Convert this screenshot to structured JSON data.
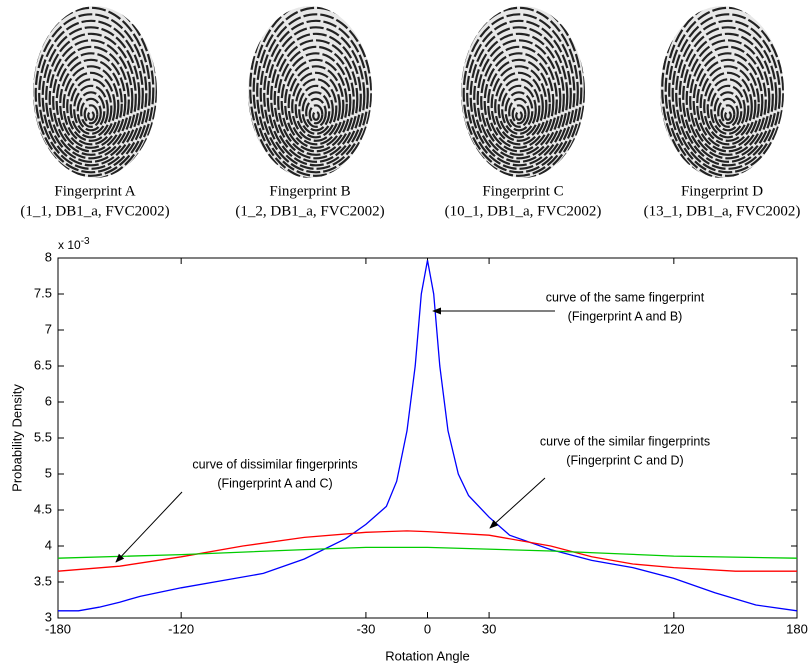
{
  "fingerprints": [
    {
      "label": "Fingerprint A",
      "source": "(1_1, DB1_a, FVC2002)"
    },
    {
      "label": "Fingerprint B",
      "source": "(1_2, DB1_a, FVC2002)"
    },
    {
      "label": "Fingerprint C",
      "source": "(10_1, DB1_a, FVC2002)"
    },
    {
      "label": "Fingerprint D",
      "source": "(13_1, DB1_a, FVC2002)"
    }
  ],
  "chart_data": {
    "type": "line",
    "x_label": "Rotation Angle",
    "y_label": "Probability Density",
    "y_multiplier": {
      "base": "x 10",
      "exponent": "-3"
    },
    "xlim": [
      -180,
      180
    ],
    "xticks": [
      -180,
      -120,
      -30,
      0,
      30,
      120,
      180
    ],
    "ylim": [
      3,
      8
    ],
    "yticks": [
      3,
      3.5,
      4,
      4.5,
      5,
      5.5,
      6,
      6.5,
      7,
      7.5,
      8
    ],
    "series": [
      {
        "color": "#0000ff",
        "x": [
          -180,
          -170,
          -160,
          -150,
          -140,
          -120,
          -100,
          -80,
          -60,
          -40,
          -30,
          -20,
          -15,
          -10,
          -6,
          -3,
          0,
          3,
          6,
          10,
          15,
          20,
          30,
          40,
          60,
          80,
          100,
          120,
          140,
          160,
          180
        ],
        "values": [
          3.1,
          3.1,
          3.15,
          3.22,
          3.3,
          3.42,
          3.52,
          3.62,
          3.82,
          4.1,
          4.3,
          4.55,
          4.9,
          5.6,
          6.5,
          7.5,
          7.97,
          7.5,
          6.5,
          5.6,
          5.0,
          4.7,
          4.4,
          4.15,
          3.95,
          3.8,
          3.7,
          3.55,
          3.35,
          3.18,
          3.1
        ]
      },
      {
        "color": "#ff0000",
        "x": [
          -180,
          -150,
          -120,
          -90,
          -60,
          -30,
          -10,
          0,
          30,
          60,
          80,
          100,
          120,
          150,
          180
        ],
        "values": [
          3.65,
          3.72,
          3.85,
          4.0,
          4.12,
          4.19,
          4.21,
          4.2,
          4.15,
          4.0,
          3.85,
          3.75,
          3.7,
          3.65,
          3.65
        ]
      },
      {
        "color": "#00cc00",
        "x": [
          -180,
          -120,
          -60,
          -30,
          0,
          60,
          120,
          180
        ],
        "values": [
          3.83,
          3.88,
          3.95,
          3.98,
          3.98,
          3.93,
          3.86,
          3.83
        ]
      }
    ],
    "annotations": [
      {
        "lines": [
          "curve of the same fingerprint",
          "(Fingerprint A and B)"
        ]
      },
      {
        "lines": [
          "curve of the similar fingerprints",
          "(Fingerprint C and D)"
        ]
      },
      {
        "lines": [
          "curve of dissimilar fingerprints",
          "(Fingerprint A and C)"
        ]
      }
    ]
  }
}
